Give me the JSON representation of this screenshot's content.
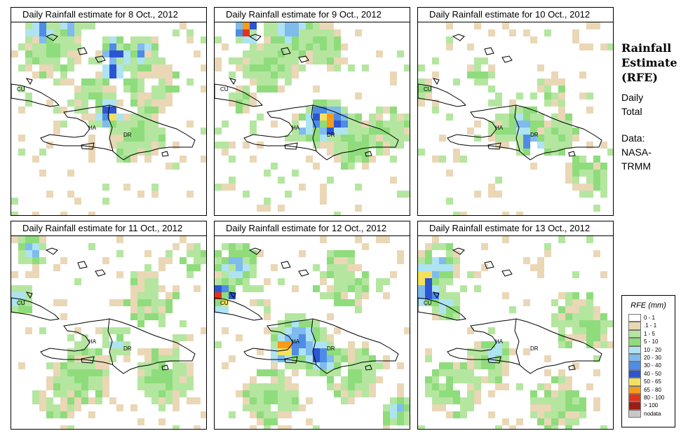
{
  "panels": [
    {
      "title": "Daily Rainfall estimate for  8 Oct., 2012"
    },
    {
      "title": "Daily Rainfall estimate for  9 Oct., 2012"
    },
    {
      "title": "Daily Rainfall estimate for  10 Oct., 2012"
    },
    {
      "title": "Daily Rainfall estimate for  11 Oct., 2012"
    },
    {
      "title": "Daily Rainfall estimate for  12 Oct., 2012"
    },
    {
      "title": "Daily Rainfall estimate for  13 Oct., 2012"
    }
  ],
  "map_labels": {
    "cuba": "CU",
    "haiti": "HA",
    "dominican_republic": "DR"
  },
  "side": {
    "title_1": "Rainfall",
    "title_2": "Estimate",
    "title_3": "(RFE)",
    "line_1": "Daily",
    "line_2": "Total",
    "line_3": "Data:",
    "line_4": "NASA-",
    "line_5": "TRMM"
  },
  "legend": {
    "title": "RFE (mm)",
    "items": [
      {
        "label": "0 - 1",
        "color": "#ffffff"
      },
      {
        "label": ".1 - 1",
        "color": "#ead7b6"
      },
      {
        "label": "1 - 5",
        "color": "#b4e6a0"
      },
      {
        "label": "5 - 10",
        "color": "#8fdc7c"
      },
      {
        "label": "10 - 20",
        "color": "#aee3f2"
      },
      {
        "label": "20 - 30",
        "color": "#7fbbed"
      },
      {
        "label": "30 - 40",
        "color": "#4e8ce6"
      },
      {
        "label": "40 - 50",
        "color": "#2c55d2"
      },
      {
        "label": "50 - 65",
        "color": "#f2e25e"
      },
      {
        "label": "65 - 80",
        "color": "#f79b1a"
      },
      {
        "label": "80 - 100",
        "color": "#e3331d"
      },
      {
        "label": "> 100",
        "color": "#9e1c17"
      },
      {
        "label": "nodata",
        "color": "#c8c8c8"
      }
    ]
  }
}
